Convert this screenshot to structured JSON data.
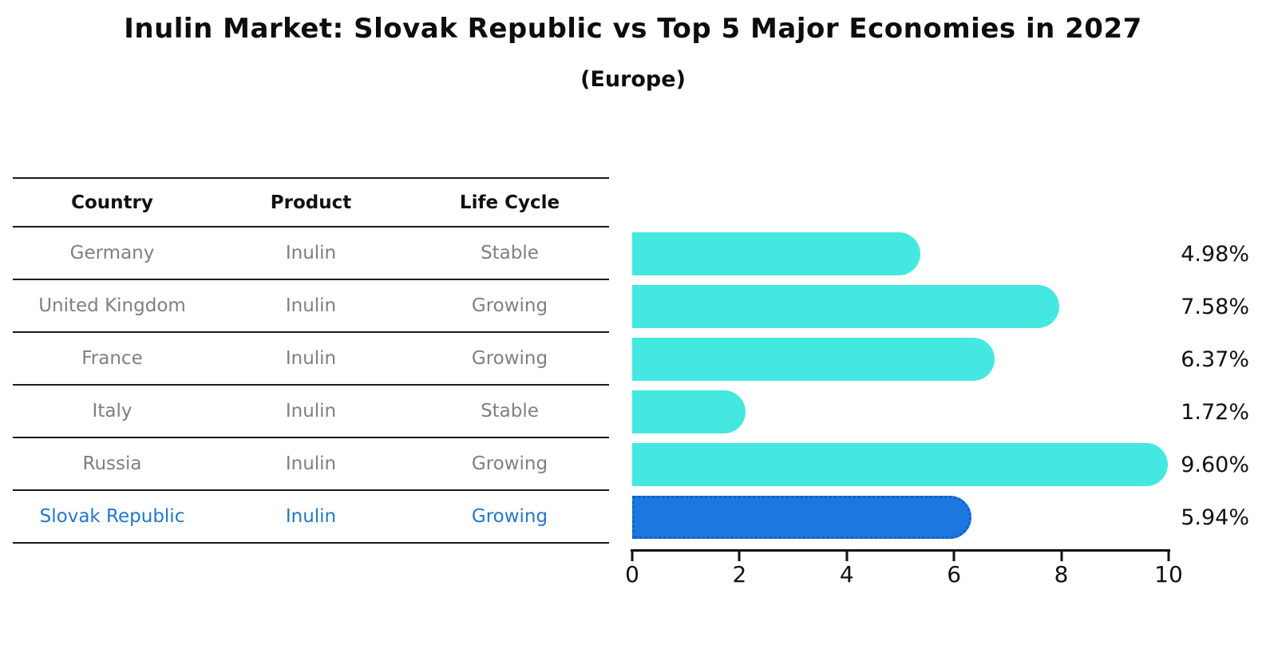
{
  "header": {
    "title": "Inulin Market: Slovak Republic vs Top 5 Major Economies in 2027",
    "subtitle": "(Europe)"
  },
  "table": {
    "columns": {
      "country": "Country",
      "product": "Product",
      "life_cycle": "Life Cycle"
    },
    "rows": [
      {
        "country": "Germany",
        "product": "Inulin",
        "life_cycle": "Stable"
      },
      {
        "country": "United Kingdom",
        "product": "Inulin",
        "life_cycle": "Growing"
      },
      {
        "country": "France",
        "product": "Inulin",
        "life_cycle": "Growing"
      },
      {
        "country": "Italy",
        "product": "Inulin",
        "life_cycle": "Stable"
      },
      {
        "country": "Russia",
        "product": "Inulin",
        "life_cycle": "Growing"
      },
      {
        "country": "Slovak Republic",
        "product": "Inulin",
        "life_cycle": "Growing"
      }
    ]
  },
  "chart_data": {
    "type": "bar",
    "orientation": "horizontal",
    "title": "Inulin Market: Slovak Republic vs Top 5 Major Economies in 2027",
    "subtitle": "(Europe)",
    "categories": [
      "Germany",
      "United Kingdom",
      "France",
      "Italy",
      "Russia",
      "Slovak Republic"
    ],
    "values": [
      4.98,
      7.58,
      6.37,
      1.72,
      9.6,
      5.94
    ],
    "value_labels": [
      "4.98%",
      "7.58%",
      "6.37%",
      "1.72%",
      "9.60%",
      "5.94%"
    ],
    "xlabel": "",
    "ylabel": "",
    "xlim": [
      0,
      10
    ],
    "xticks": [
      0,
      2,
      4,
      6,
      8,
      10
    ],
    "grid": false,
    "legend": "none",
    "bar_color": "#45e8e0",
    "highlight_index": 5,
    "highlight_color": "#1c78e0",
    "highlight_border_color": "#1060c8",
    "highlight_text_color": "#2277cc",
    "table_text_color": "#7f7f7f"
  }
}
